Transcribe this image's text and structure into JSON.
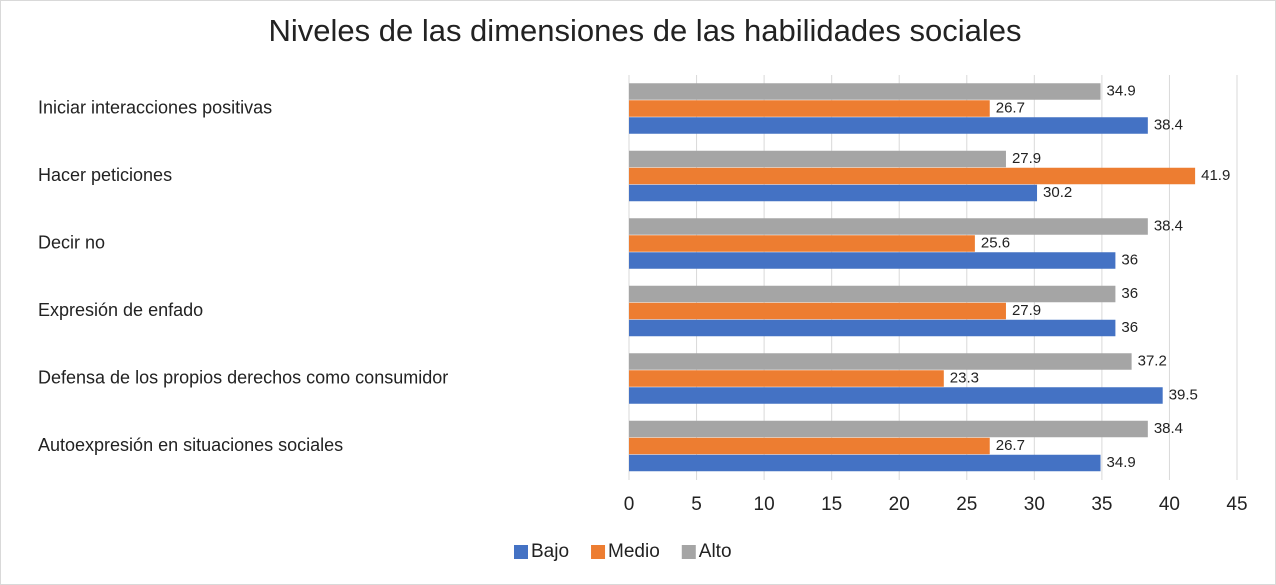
{
  "chart_data": {
    "type": "bar",
    "orientation": "horizontal",
    "title": "Niveles de las dimensiones de las habilidades sociales",
    "categories": [
      "Iniciar interacciones positivas",
      "Hacer peticiones",
      "Decir no",
      "Expresión de enfado",
      "Defensa de los propios derechos como consumidor",
      "Autoexpresión en situaciones sociales"
    ],
    "series": [
      {
        "name": "Bajo",
        "color": "#4472c4",
        "values": [
          38.4,
          30.2,
          36,
          36,
          39.5,
          34.9
        ]
      },
      {
        "name": "Medio",
        "color": "#ed7d31",
        "values": [
          26.7,
          41.9,
          25.6,
          27.9,
          23.3,
          26.7
        ]
      },
      {
        "name": "Alto",
        "color": "#a5a5a5",
        "values": [
          34.9,
          27.9,
          38.4,
          36,
          37.2,
          38.4
        ]
      }
    ],
    "xlim": [
      0,
      45
    ],
    "xticks": [
      0,
      5,
      10,
      15,
      20,
      25,
      30,
      35,
      40,
      45
    ],
    "grid": true,
    "legend": "bottom"
  }
}
